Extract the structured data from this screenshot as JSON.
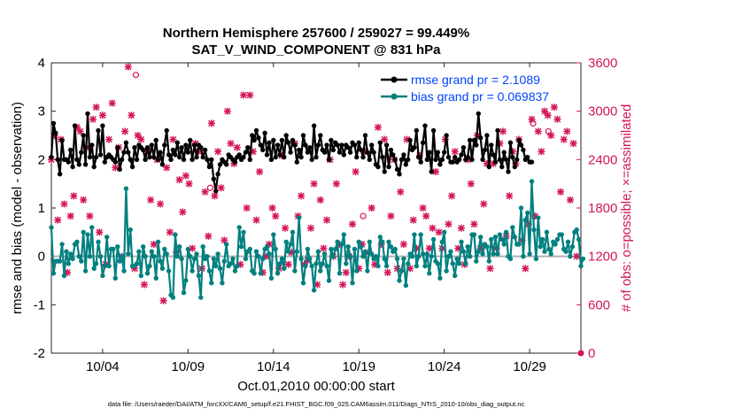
{
  "chart_data": {
    "type": "line",
    "title": "Northern Hemisphere 257600 / 259027 = 99.449%",
    "subtitle": "SAT_V_WIND_COMPONENT @ 831 hPa",
    "xlabel": "Oct.01,2010 00:00:00 start",
    "ylabel": "rmse and bias (model - observation)",
    "ylabel_right": "# of obs: o=possible; ×=assimilated",
    "footer": "data file: /Users/raeder/DAI/ATM_forcXX/CAM6_setup/f.e21.FHIST_BGC.f09_025.CAM6assim.011/Diags_NTrS_2010-10/obs_diag_output.nc",
    "x_ticks": [
      "10/04",
      "10/09",
      "10/14",
      "10/19",
      "10/24",
      "10/29"
    ],
    "x_tick_days": [
      4,
      9,
      14,
      19,
      24,
      29
    ],
    "xlim_days": [
      1,
      32
    ],
    "ylim": [
      -2,
      4
    ],
    "y_ticks": [
      "-2",
      "-1",
      "0",
      "1",
      "2",
      "3",
      "4"
    ],
    "ylim_right": [
      0,
      3600
    ],
    "y_ticks_right": [
      "0",
      "600",
      "1200",
      "1800",
      "2400",
      "3000",
      "3600"
    ],
    "legend": [
      "rmse grand pr = 2.1089",
      "bias grand pr = 0.069837"
    ],
    "legend_position": "top-right",
    "colors": {
      "rmse": "#000000",
      "bias": "#00807f",
      "obs": "#d4145a",
      "zero": "#b0b0b0"
    },
    "series": [
      {
        "name": "rmse grand pr = 2.1089",
        "values": [
          2.05,
          2.75,
          2.55,
          2.0,
          1.7,
          2.4,
          2.0,
          2.0,
          1.95,
          2.2,
          1.85,
          2.7,
          2.0,
          1.9,
          2.15,
          2.5,
          1.9,
          2.95,
          2.05,
          2.3,
          1.85,
          2.05,
          2.6,
          2.1,
          2.7,
          1.95,
          2.05,
          2.1,
          2.05,
          2.0,
          1.95,
          2.25,
          1.8,
          2.0,
          2.15,
          2.35,
          2.15,
          2.0,
          1.85,
          2.25,
          2.0,
          2.3,
          2.25,
          2.2,
          2.0,
          2.25,
          2.05,
          2.3,
          2.05,
          2.4,
          2.0,
          2.15,
          1.9,
          2.3,
          2.6,
          2.1,
          2.0,
          2.2,
          2.1,
          2.35,
          2.05,
          2.25,
          2.0,
          2.3,
          2.15,
          2.4,
          2.0,
          2.3,
          2.05,
          2.3,
          2.25,
          2.05,
          2.2,
          2.0,
          1.85,
          2.0,
          1.6,
          1.35,
          1.7,
          1.9,
          2.0,
          1.95,
          1.9,
          2.1,
          2.05,
          2.0,
          1.95,
          2.05,
          2.1,
          2.0,
          2.05,
          2.15,
          2.25,
          2.0,
          2.5,
          2.4,
          2.6,
          2.45,
          2.3,
          2.2,
          2.55,
          2.1,
          2.35,
          2.0,
          2.4,
          2.05,
          2.3,
          2.1,
          2.4,
          2.05,
          2.5,
          2.35,
          2.15,
          2.4,
          2.3,
          1.95,
          2.2,
          2.05,
          2.5,
          2.3,
          2.15,
          2.25,
          2.0,
          2.7,
          2.05,
          2.3,
          2.5,
          2.2,
          2.15,
          2.3,
          2.0,
          2.4,
          2.2,
          2.35,
          2.3,
          2.15,
          2.3,
          2.1,
          2.3,
          2.25,
          2.15,
          2.35,
          2.3,
          2.05,
          2.35,
          2.2,
          2.05,
          2.5,
          2.15,
          2.0,
          2.3,
          2.15,
          1.9,
          1.85,
          2.35,
          2.05,
          1.75,
          2.3,
          1.85,
          2.2,
          2.1,
          2.0,
          1.8,
          1.7,
          2.0,
          2.1,
          1.9,
          2.0,
          2.4,
          2.2,
          2.25,
          2.6,
          2.05,
          1.95,
          2.35,
          2.7,
          2.0,
          2.15,
          1.75,
          2.6,
          2.0,
          2.15,
          1.9,
          2.0,
          2.15,
          2.5,
          2.05,
          1.95,
          1.95,
          2.05,
          1.95,
          2.0,
          2.1,
          2.25,
          2.0,
          2.05,
          2.4,
          2.0,
          2.4,
          2.3,
          2.95,
          2.45,
          2.0,
          2.2,
          2.5,
          1.85,
          2.3,
          2.1,
          1.95,
          2.6,
          2.0,
          1.85,
          2.15,
          2.0,
          1.75,
          2.35,
          2.05,
          1.85,
          2.0,
          2.4,
          2.3,
          2.2,
          2.0,
          2.05,
          1.95,
          1.95
        ],
        "x_start_day": 1.0,
        "x_step_days": 0.125
      },
      {
        "name": "bias grand pr = 0.069837",
        "values": [
          0.6,
          -0.35,
          -0.1,
          -0.1,
          -0.1,
          0.25,
          -0.4,
          0.1,
          -0.15,
          0.05,
          -0.05,
          0.25,
          0.3,
          0.0,
          -0.1,
          0.5,
          -0.3,
          0.45,
          0.0,
          0.6,
          -0.25,
          -0.15,
          0.3,
          0.0,
          -0.4,
          -0.2,
          0.4,
          -0.2,
          0.15,
          0.15,
          -0.45,
          0.2,
          -0.1,
          0.0,
          -0.3,
          1.4,
          0.05,
          0.55,
          -0.2,
          -0.2,
          -0.15,
          0.1,
          -0.4,
          0.2,
          0.0,
          -0.35,
          -0.2,
          0.1,
          0.0,
          -0.45,
          0.3,
          -0.1,
          -0.25,
          0.15,
          0.05,
          -0.3,
          -0.8,
          -0.85,
          0.45,
          0.0,
          0.2,
          -0.05,
          -0.75,
          -0.5,
          0.15,
          0.0,
          -0.3,
          -0.05,
          0.05,
          -0.4,
          -0.85,
          0.2,
          -0.05,
          0.0,
          -0.3,
          -0.55,
          -0.05,
          -0.2,
          0.05,
          -0.25,
          -0.55,
          -0.1,
          0.25,
          -0.2,
          -0.15,
          -0.05,
          -0.3,
          -0.2,
          0.6,
          0.2,
          0.5,
          -0.05,
          0.1,
          0.15,
          -0.3,
          -0.35,
          0.1,
          0.0,
          -0.35,
          -0.05,
          0.15,
          0.2,
          0.05,
          -0.45,
          0.45,
          0.15,
          -0.35,
          -0.15,
          -0.05,
          -0.25,
          0.3,
          0.1,
          0.25,
          0.5,
          -0.3,
          0.1,
          0.8,
          -0.05,
          -0.55,
          -0.2,
          0.15,
          -0.05,
          -0.2,
          -0.7,
          -0.15,
          0.1,
          -0.3,
          -0.15,
          0.05,
          -0.2,
          -0.5,
          0.15,
          0.0,
          0.15,
          0.3,
          -0.35,
          0.25,
          0.45,
          -0.15,
          0.2,
          0.0,
          -0.55,
          0.15,
          -0.3,
          0.3,
          0.2,
          0.0,
          0.1,
          -0.3,
          0.3,
          0.05,
          -0.05,
          0.0,
          -0.2,
          0.4,
          0.3,
          -0.05,
          -0.2,
          0.3,
          0.2,
          0.1,
          0.15,
          -0.05,
          -0.5,
          -0.3,
          -0.05,
          -0.6,
          -0.15,
          0.05,
          0.0,
          0.45,
          -0.2,
          0.0,
          0.45,
          0.05,
          -0.2,
          0.05,
          -0.35,
          0.0,
          0.35,
          -0.1,
          -0.15,
          -0.45,
          0.3,
          0.5,
          -0.3,
          0.0,
          0.1,
          -0.15,
          -0.4,
          -0.05,
          -0.15,
          0.3,
          0.1,
          -0.15,
          0.2,
          0.0,
          0.45,
          0.45,
          -0.1,
          0.1,
          0.4,
          0.05,
          0.25,
          0.2,
          -0.1,
          0.35,
          0.05,
          0.4,
          0.05,
          0.45,
          0.35,
          0.25,
          0.5,
          0.0,
          -0.05,
          0.6,
          0.4,
          0.25,
          0.25,
          1.0,
          0.0,
          0.75,
          0.9,
          0.05,
          1.55,
          0.55,
          -0.05,
          0.8,
          0.2,
          0.35,
          0.1,
          0.5,
          0.15,
          0.05,
          0.3,
          0.25,
          0.35,
          0.45,
          0.45,
          0.15,
          0.1,
          0.3,
          0.0,
          0.2,
          0.5,
          0.55,
          0.35,
          -0.2,
          -0.05
        ],
        "x_start_day": 1.0,
        "x_step_days": 0.125
      },
      {
        "name": "",
        "kind": "observations",
        "values": [
          2400,
          2700,
          1650,
          2650,
          1850,
          1000,
          1700,
          1950,
          2800,
          2750,
          1900,
          2550,
          1700,
          2900,
          3050,
          1500,
          2950,
          1100,
          2650,
          3100,
          2300,
          2550,
          1200,
          2750,
          3550,
          2950,
          1050,
          2700,
          2650,
          850,
          2500,
          1900,
          1350,
          2400,
          1850,
          650,
          2300,
          1500,
          2650,
          1250,
          2150,
          1750,
          2200,
          2100,
          1300,
          2600,
          2500,
          1050,
          2000,
          1450,
          2850,
          1950,
          2500,
          2050,
          1400,
          3000,
          2600,
          2350,
          2550,
          1100,
          3200,
          1800,
          3200,
          2500,
          1650,
          2250,
          1000,
          1200,
          1350,
          1800,
          1700,
          1050,
          2450,
          1550,
          1100,
          1250,
          2600,
          1700,
          1950,
          1100,
          1150,
          1550,
          2100,
          850,
          1900,
          1300,
          1650,
          2400,
          1200,
          2100,
          1350,
          850,
          1000,
          1200,
          1600,
          2250,
          1050,
          1350,
          2500,
          1250,
          1800,
          1100,
          2800,
          1350,
          2650,
          1000,
          1700,
          2400,
          1050,
          2000,
          1350,
          2650,
          1050,
          1650,
          1300,
          2450,
          1800,
          1700,
          1300,
          1550,
          2250,
          1500,
          1300,
          2650,
          1600,
          1950,
          2500,
          1300,
          1550,
          1100,
          2400,
          2100,
          1600,
          2700,
          1300,
          1850,
          2350,
          1050,
          2350,
          1300,
          2600,
          2750,
          1450,
          1950,
          2500,
          2350,
          2650,
          1400,
          1050,
          1600,
          2900,
          1700,
          2750,
          2500,
          3000,
          2950,
          2700,
          3050,
          2900,
          2000,
          2650,
          2750,
          1900,
          2600,
          1200
        ],
        "x_start_day": 1.0,
        "x_step_days": 0.1875
      }
    ],
    "possible_markers": [
      {
        "day": 5.95,
        "value": 3450
      },
      {
        "day": 10.3,
        "value": 2050
      },
      {
        "day": 19.25,
        "value": 1700
      },
      {
        "day": 29.2,
        "value": 2850
      },
      {
        "day": 30.1,
        "value": 2750
      }
    ]
  }
}
